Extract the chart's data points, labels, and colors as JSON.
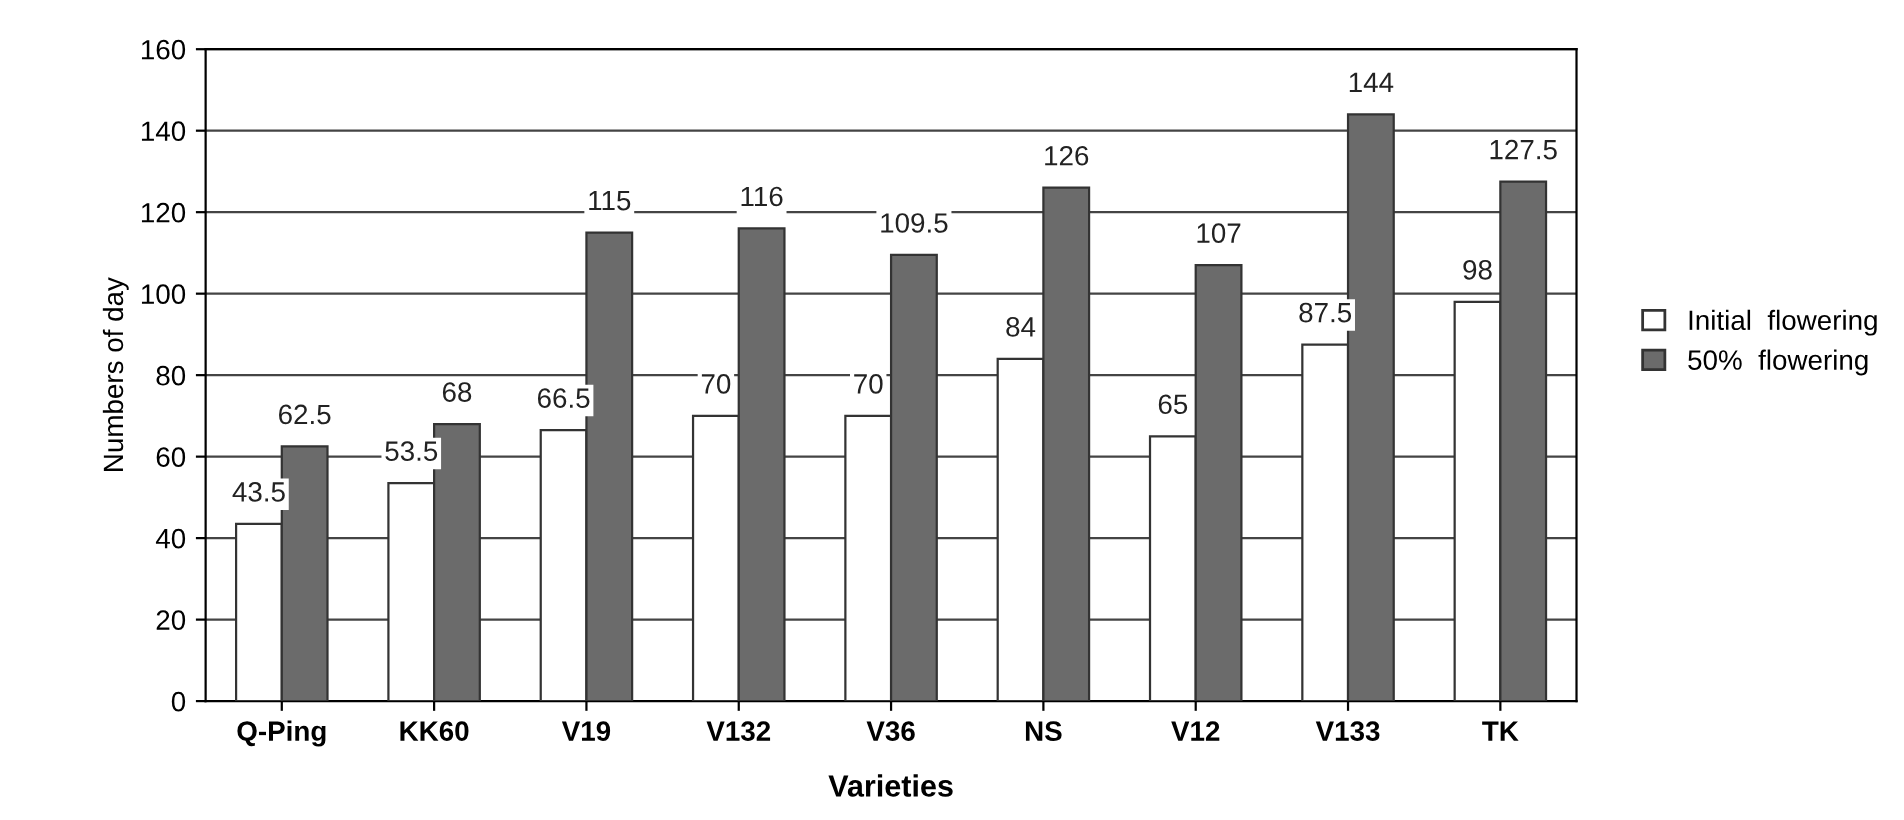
{
  "chart_data": {
    "type": "bar",
    "xlabel": "Varieties",
    "ylabel": "Numbers of day",
    "categories": [
      "Q-Ping",
      "KK60",
      "V19",
      "V132",
      "V36",
      "NS",
      "V12",
      "V133",
      "TK"
    ],
    "series": [
      {
        "name": "Initial  flowering",
        "color": "#ffffff",
        "values": [
          43.5,
          53.5,
          66.5,
          70,
          70,
          84,
          65,
          87.5,
          98
        ]
      },
      {
        "name": "50%  flowering",
        "color": "#6b6b6b",
        "values": [
          62.5,
          68,
          115,
          116,
          109.5,
          126,
          107,
          144,
          127.5
        ]
      }
    ],
    "ylim": [
      0,
      160
    ],
    "yticks": [
      0,
      20,
      40,
      60,
      80,
      100,
      120,
      140,
      160
    ],
    "grid": "y",
    "legend": "right",
    "data_labels": true
  }
}
